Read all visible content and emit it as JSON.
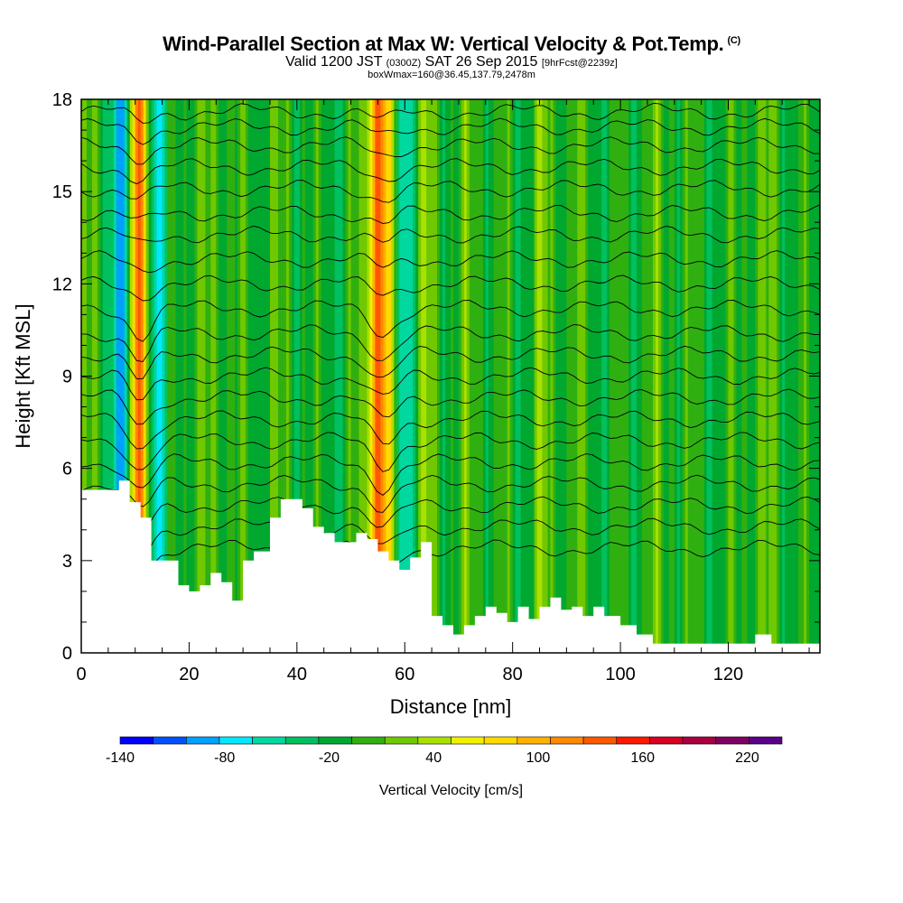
{
  "title": {
    "main": "Wind-Parallel Section at Max W: Vertical Velocity & Pot.Temp.",
    "copyright": "(C)",
    "valid_prefix": "Valid 1200 JST",
    "valid_utc": "(0300Z)",
    "valid_date": "SAT 26 Sep 2015",
    "forecast": "[9hrFcst@2239z]",
    "box_info": "boxWmax=160@36.45,137.79,2478m"
  },
  "chart_data": {
    "type": "heatmap",
    "xlabel": "Distance [nm]",
    "ylabel": "Height [Kft MSL]",
    "xlim": [
      0,
      137
    ],
    "ylim": [
      0,
      18
    ],
    "x_ticks": [
      0,
      20,
      40,
      60,
      80,
      100,
      120
    ],
    "y_ticks": [
      0,
      3,
      6,
      9,
      12,
      15,
      18
    ],
    "colorbar": {
      "label": "Vertical Velocity [cm/s]",
      "tick_labels": [
        "-140",
        "-80",
        "-20",
        "40",
        "100",
        "160",
        "220"
      ],
      "tick_values": [
        -140,
        -80,
        -20,
        40,
        100,
        160,
        220
      ],
      "range": [
        -140,
        240
      ],
      "colors": [
        "#0000ff",
        "#0050ff",
        "#00a0ff",
        "#00e8ff",
        "#00d8a0",
        "#00c060",
        "#00a830",
        "#30b010",
        "#70c800",
        "#a8e000",
        "#f0f000",
        "#ffd800",
        "#ffb000",
        "#ff8800",
        "#ff5800",
        "#ff1800",
        "#d80020",
        "#a80040",
        "#800060",
        "#580088"
      ]
    },
    "background_value": -5,
    "updrafts": [
      {
        "x": 10.5,
        "w": 160
      },
      {
        "x": 55.5,
        "w": 120
      },
      {
        "x": 63.5,
        "w": 40
      },
      {
        "x": 53.0,
        "w": 110
      },
      {
        "x": 25.0,
        "w": 30
      },
      {
        "x": 85.0,
        "w": 20
      }
    ],
    "downdrafts": [
      {
        "x": 14.5,
        "w": -80
      },
      {
        "x": 52.5,
        "w": -90
      },
      {
        "x": 60.0,
        "w": -50
      },
      {
        "x": 8.0,
        "w": -110
      }
    ],
    "terrain": {
      "x": [
        0,
        7,
        7,
        9,
        9,
        11,
        11,
        13,
        13,
        18,
        18,
        20,
        20,
        22,
        22,
        24,
        24,
        26,
        26,
        28,
        28,
        30,
        30,
        32,
        32,
        35,
        35,
        37,
        37,
        39,
        39,
        41,
        41,
        43,
        43,
        45,
        45,
        47,
        47,
        49,
        49,
        51,
        51,
        53,
        53,
        55,
        55,
        57,
        57,
        59,
        59,
        61,
        61,
        63,
        63,
        65,
        65,
        67,
        67,
        69,
        69,
        71,
        71,
        73,
        73,
        75,
        75,
        77,
        77,
        79,
        79,
        81,
        81,
        83,
        83,
        85,
        85,
        87,
        87,
        89,
        89,
        91,
        91,
        93,
        93,
        95,
        95,
        97,
        97,
        100,
        100,
        103,
        103,
        106,
        106,
        125,
        125,
        128,
        128,
        131,
        131,
        137
      ],
      "y": [
        5.3,
        5.3,
        5.6,
        5.6,
        4.9,
        4.9,
        4.4,
        4.4,
        3.0,
        3.0,
        2.2,
        2.2,
        2.0,
        2.0,
        2.2,
        2.2,
        2.6,
        2.6,
        2.3,
        2.3,
        1.7,
        1.7,
        3.0,
        3.0,
        3.3,
        3.3,
        4.4,
        4.4,
        5.0,
        5.0,
        5.0,
        5.0,
        4.7,
        4.7,
        4.1,
        4.1,
        3.9,
        3.9,
        3.6,
        3.6,
        3.6,
        3.6,
        3.9,
        3.9,
        3.7,
        3.7,
        3.3,
        3.3,
        3.0,
        3.0,
        2.7,
        2.7,
        3.1,
        3.1,
        3.6,
        3.6,
        1.2,
        1.2,
        0.9,
        0.9,
        0.6,
        0.6,
        0.9,
        0.9,
        1.2,
        1.2,
        1.5,
        1.5,
        1.3,
        1.3,
        1.0,
        1.0,
        1.5,
        1.5,
        1.1,
        1.1,
        1.5,
        1.5,
        1.8,
        1.8,
        1.4,
        1.4,
        1.5,
        1.5,
        1.2,
        1.2,
        1.5,
        1.5,
        1.2,
        1.2,
        0.9,
        0.9,
        0.6,
        0.6,
        0.3,
        0.3,
        0.6,
        0.6,
        0.3,
        0.3,
        0.3,
        0.3
      ]
    },
    "theta_contours": [
      {
        "y": 17.6,
        "label": ""
      },
      {
        "y": 17.1,
        "label": ""
      },
      {
        "y": 16.5,
        "label": ""
      },
      {
        "y": 15.8,
        "label": ""
      },
      {
        "y": 15.1,
        "label": ""
      },
      {
        "y": 14.3,
        "label": ""
      },
      {
        "y": 13.6,
        "label": ""
      },
      {
        "y": 12.8,
        "label": ""
      },
      {
        "y": 12.0,
        "label": ""
      },
      {
        "y": 11.2,
        "label": ""
      },
      {
        "y": 10.4,
        "label": ""
      },
      {
        "y": 9.7,
        "label": ""
      },
      {
        "y": 9.0,
        "label": ""
      },
      {
        "y": 8.3,
        "label": ""
      },
      {
        "y": 7.6,
        "label": ""
      },
      {
        "y": 6.9,
        "label": ""
      },
      {
        "y": 6.2,
        "label": ""
      },
      {
        "y": 5.5,
        "label": ""
      },
      {
        "y": 4.8,
        "label": ""
      },
      {
        "y": 4.1,
        "label": ""
      },
      {
        "y": 3.4,
        "label": ""
      }
    ]
  }
}
